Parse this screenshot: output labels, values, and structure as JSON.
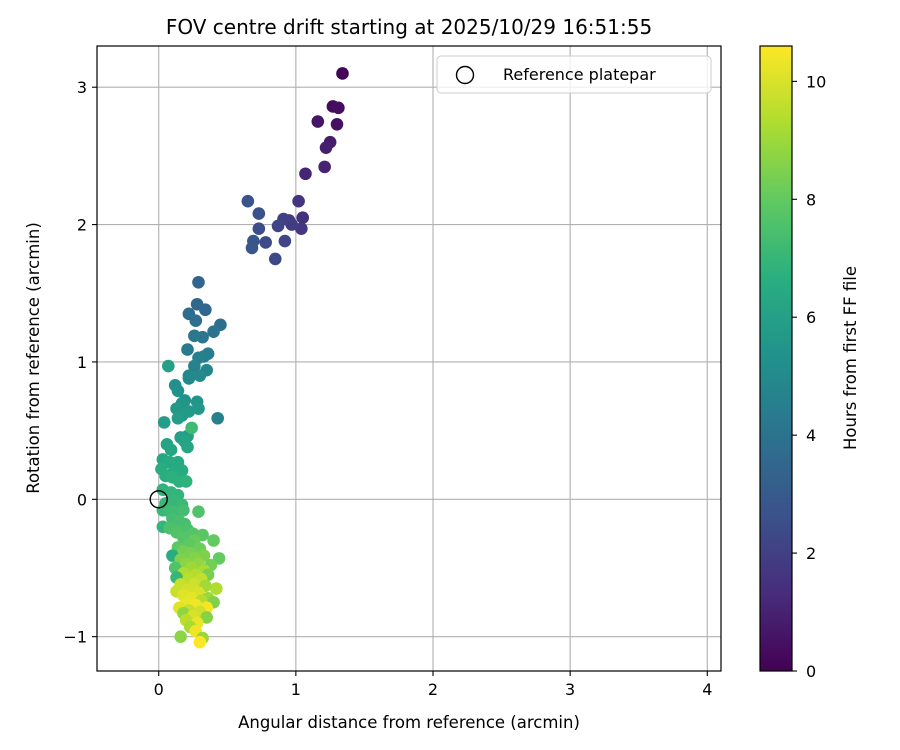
{
  "chart_data": {
    "type": "scatter",
    "title": "FOV centre drift starting at 2025/10/29 16:51:55",
    "xlabel": "Angular distance from reference (arcmin)",
    "ylabel": "Rotation from reference (arcmin)",
    "xlim": [
      -0.45,
      4.1
    ],
    "ylim": [
      -1.25,
      3.3
    ],
    "xticks": [
      0,
      1,
      2,
      3,
      4
    ],
    "yticks": [
      -1,
      0,
      1,
      2,
      3
    ],
    "xtick_labels": [
      "0",
      "1",
      "2",
      "3",
      "4"
    ],
    "ytick_labels": [
      "−1",
      "0",
      "1",
      "2",
      "3"
    ],
    "grid": true,
    "legend": {
      "position": "top-right",
      "label": "Reference platepar"
    },
    "reference_point": {
      "x": 0,
      "y": 0
    },
    "colorbar": {
      "label": "Hours from first FF file",
      "colormap": "viridis",
      "range": [
        0,
        10.6
      ],
      "ticks": [
        0,
        2,
        4,
        6,
        8,
        10
      ],
      "tick_labels": [
        "0",
        "2",
        "4",
        "6",
        "8",
        "10"
      ]
    },
    "series": [
      {
        "name": "FOV centre drift",
        "points": [
          {
            "x": 1.34,
            "y": 3.1,
            "c": 0.1
          },
          {
            "x": 1.27,
            "y": 2.86,
            "c": 0.3
          },
          {
            "x": 1.31,
            "y": 2.85,
            "c": 0.4
          },
          {
            "x": 1.3,
            "y": 2.73,
            "c": 0.5
          },
          {
            "x": 1.16,
            "y": 2.75,
            "c": 0.6
          },
          {
            "x": 1.25,
            "y": 2.6,
            "c": 0.8
          },
          {
            "x": 1.22,
            "y": 2.56,
            "c": 0.9
          },
          {
            "x": 1.21,
            "y": 2.42,
            "c": 1.0
          },
          {
            "x": 1.07,
            "y": 2.37,
            "c": 1.1
          },
          {
            "x": 1.05,
            "y": 2.05,
            "c": 1.5
          },
          {
            "x": 1.02,
            "y": 2.17,
            "c": 1.6
          },
          {
            "x": 1.04,
            "y": 1.97,
            "c": 1.7
          },
          {
            "x": 0.95,
            "y": 2.03,
            "c": 1.8
          },
          {
            "x": 0.97,
            "y": 2.0,
            "c": 1.9
          },
          {
            "x": 0.91,
            "y": 2.04,
            "c": 2.0
          },
          {
            "x": 0.87,
            "y": 1.99,
            "c": 2.1
          },
          {
            "x": 0.92,
            "y": 1.88,
            "c": 2.2
          },
          {
            "x": 0.85,
            "y": 1.75,
            "c": 2.3
          },
          {
            "x": 0.78,
            "y": 1.87,
            "c": 2.4
          },
          {
            "x": 0.73,
            "y": 1.97,
            "c": 2.5
          },
          {
            "x": 0.73,
            "y": 2.08,
            "c": 2.6
          },
          {
            "x": 0.65,
            "y": 2.17,
            "c": 2.7
          },
          {
            "x": 0.69,
            "y": 1.88,
            "c": 2.8
          },
          {
            "x": 0.68,
            "y": 1.83,
            "c": 2.9
          },
          {
            "x": 0.29,
            "y": 1.58,
            "c": 3.4
          },
          {
            "x": 0.28,
            "y": 1.42,
            "c": 3.5
          },
          {
            "x": 0.34,
            "y": 1.38,
            "c": 3.6
          },
          {
            "x": 0.22,
            "y": 1.35,
            "c": 3.7
          },
          {
            "x": 0.27,
            "y": 1.3,
            "c": 3.8
          },
          {
            "x": 0.45,
            "y": 1.27,
            "c": 3.9
          },
          {
            "x": 0.4,
            "y": 1.22,
            "c": 4.0
          },
          {
            "x": 0.32,
            "y": 1.18,
            "c": 4.1
          },
          {
            "x": 0.26,
            "y": 1.19,
            "c": 4.2
          },
          {
            "x": 0.21,
            "y": 1.09,
            "c": 4.3
          },
          {
            "x": 0.36,
            "y": 1.06,
            "c": 4.4
          },
          {
            "x": 0.33,
            "y": 1.04,
            "c": 4.5
          },
          {
            "x": 0.29,
            "y": 1.03,
            "c": 4.6
          },
          {
            "x": 0.26,
            "y": 0.97,
            "c": 4.7
          },
          {
            "x": 0.35,
            "y": 0.94,
            "c": 4.8
          },
          {
            "x": 0.3,
            "y": 0.9,
            "c": 4.9
          },
          {
            "x": 0.22,
            "y": 0.9,
            "c": 5.0
          },
          {
            "x": 0.43,
            "y": 0.59,
            "c": 4.6
          },
          {
            "x": 0.22,
            "y": 0.88,
            "c": 5.0
          },
          {
            "x": 0.12,
            "y": 0.83,
            "c": 5.2
          },
          {
            "x": 0.14,
            "y": 0.79,
            "c": 5.3
          },
          {
            "x": 0.19,
            "y": 0.72,
            "c": 5.4
          },
          {
            "x": 0.17,
            "y": 0.7,
            "c": 5.5
          },
          {
            "x": 0.28,
            "y": 0.71,
            "c": 5.5
          },
          {
            "x": 0.29,
            "y": 0.66,
            "c": 5.6
          },
          {
            "x": 0.13,
            "y": 0.66,
            "c": 5.6
          },
          {
            "x": 0.22,
            "y": 0.64,
            "c": 5.7
          },
          {
            "x": 0.17,
            "y": 0.61,
            "c": 5.7
          },
          {
            "x": 0.14,
            "y": 0.59,
            "c": 5.8
          },
          {
            "x": 0.04,
            "y": 0.56,
            "c": 5.8
          },
          {
            "x": 0.07,
            "y": 0.97,
            "c": 6.0
          },
          {
            "x": 0.21,
            "y": 0.46,
            "c": 5.9
          },
          {
            "x": 0.16,
            "y": 0.45,
            "c": 6.0
          },
          {
            "x": 0.19,
            "y": 0.42,
            "c": 6.1
          },
          {
            "x": 0.06,
            "y": 0.4,
            "c": 6.1
          },
          {
            "x": 0.09,
            "y": 0.36,
            "c": 6.2
          },
          {
            "x": 0.21,
            "y": 0.38,
            "c": 6.2
          },
          {
            "x": 0.24,
            "y": 0.52,
            "c": 7.2
          },
          {
            "x": 0.03,
            "y": 0.29,
            "c": 6.3
          },
          {
            "x": 0.08,
            "y": 0.27,
            "c": 6.4
          },
          {
            "x": 0.14,
            "y": 0.27,
            "c": 6.4
          },
          {
            "x": 0.17,
            "y": 0.21,
            "c": 6.5
          },
          {
            "x": 0.11,
            "y": 0.2,
            "c": 6.5
          },
          {
            "x": 0.02,
            "y": 0.22,
            "c": 6.6
          },
          {
            "x": 0.05,
            "y": 0.17,
            "c": 6.6
          },
          {
            "x": 0.1,
            "y": 0.16,
            "c": 6.7
          },
          {
            "x": 0.15,
            "y": 0.13,
            "c": 6.7
          },
          {
            "x": 0.2,
            "y": 0.13,
            "c": 6.8
          },
          {
            "x": 0.03,
            "y": 0.07,
            "c": 6.8
          },
          {
            "x": 0.09,
            "y": 0.05,
            "c": 6.9
          },
          {
            "x": 0.14,
            "y": 0.03,
            "c": 6.9
          },
          {
            "x": 0.05,
            "y": -0.03,
            "c": 7.0
          },
          {
            "x": 0.12,
            "y": -0.01,
            "c": 7.0
          },
          {
            "x": 0.17,
            "y": -0.04,
            "c": 7.1
          },
          {
            "x": 0.03,
            "y": -0.08,
            "c": 7.1
          },
          {
            "x": 0.08,
            "y": -0.09,
            "c": 7.2
          },
          {
            "x": 0.13,
            "y": -0.1,
            "c": 7.2
          },
          {
            "x": 0.18,
            "y": -0.08,
            "c": 7.3
          },
          {
            "x": 0.29,
            "y": -0.09,
            "c": 7.6
          },
          {
            "x": 0.1,
            "y": -0.14,
            "c": 7.3
          },
          {
            "x": 0.15,
            "y": -0.16,
            "c": 7.4
          },
          {
            "x": 0.19,
            "y": -0.18,
            "c": 7.4
          },
          {
            "x": 0.03,
            "y": -0.2,
            "c": 6.9
          },
          {
            "x": 0.08,
            "y": -0.21,
            "c": 7.5
          },
          {
            "x": 0.21,
            "y": -0.22,
            "c": 7.5
          },
          {
            "x": 0.13,
            "y": -0.24,
            "c": 7.6
          },
          {
            "x": 0.25,
            "y": -0.25,
            "c": 7.7
          },
          {
            "x": 0.32,
            "y": -0.26,
            "c": 7.8
          },
          {
            "x": 0.18,
            "y": -0.28,
            "c": 7.7
          },
          {
            "x": 0.4,
            "y": -0.3,
            "c": 8.0
          },
          {
            "x": 0.26,
            "y": -0.3,
            "c": 8.1
          },
          {
            "x": 0.22,
            "y": -0.33,
            "c": 7.9
          },
          {
            "x": 0.14,
            "y": -0.35,
            "c": 7.9
          },
          {
            "x": 0.3,
            "y": -0.36,
            "c": 8.2
          },
          {
            "x": 0.18,
            "y": -0.38,
            "c": 8.3
          },
          {
            "x": 0.23,
            "y": -0.39,
            "c": 8.4
          },
          {
            "x": 0.1,
            "y": -0.41,
            "c": 6.6
          },
          {
            "x": 0.33,
            "y": -0.41,
            "c": 8.5
          },
          {
            "x": 0.26,
            "y": -0.43,
            "c": 8.6
          },
          {
            "x": 0.44,
            "y": -0.43,
            "c": 8.0
          },
          {
            "x": 0.16,
            "y": -0.44,
            "c": 8.5
          },
          {
            "x": 0.2,
            "y": -0.47,
            "c": 8.7
          },
          {
            "x": 0.29,
            "y": -0.47,
            "c": 8.8
          },
          {
            "x": 0.38,
            "y": -0.48,
            "c": 8.3
          },
          {
            "x": 0.12,
            "y": -0.5,
            "c": 7.6
          },
          {
            "x": 0.24,
            "y": -0.5,
            "c": 9.0
          },
          {
            "x": 0.33,
            "y": -0.52,
            "c": 9.2
          },
          {
            "x": 0.18,
            "y": -0.54,
            "c": 9.3
          },
          {
            "x": 0.27,
            "y": -0.55,
            "c": 9.4
          },
          {
            "x": 0.36,
            "y": -0.55,
            "c": 8.4
          },
          {
            "x": 0.13,
            "y": -0.57,
            "c": 7.0
          },
          {
            "x": 0.22,
            "y": -0.58,
            "c": 9.5
          },
          {
            "x": 0.31,
            "y": -0.58,
            "c": 9.6
          },
          {
            "x": 0.16,
            "y": -0.62,
            "c": 9.7
          },
          {
            "x": 0.26,
            "y": -0.62,
            "c": 9.8
          },
          {
            "x": 0.34,
            "y": -0.63,
            "c": 9.1
          },
          {
            "x": 0.42,
            "y": -0.65,
            "c": 9.3
          },
          {
            "x": 0.21,
            "y": -0.66,
            "c": 9.9
          },
          {
            "x": 0.13,
            "y": -0.67,
            "c": 9.7
          },
          {
            "x": 0.29,
            "y": -0.68,
            "c": 10.0
          },
          {
            "x": 0.18,
            "y": -0.7,
            "c": 10.1
          },
          {
            "x": 0.24,
            "y": -0.72,
            "c": 10.2
          },
          {
            "x": 0.36,
            "y": -0.72,
            "c": 9.0
          },
          {
            "x": 0.31,
            "y": -0.74,
            "c": 9.4
          },
          {
            "x": 0.4,
            "y": -0.75,
            "c": 8.5
          },
          {
            "x": 0.2,
            "y": -0.76,
            "c": 10.3
          },
          {
            "x": 0.27,
            "y": -0.77,
            "c": 10.4
          },
          {
            "x": 0.15,
            "y": -0.79,
            "c": 10.1
          },
          {
            "x": 0.35,
            "y": -0.79,
            "c": 10.5
          },
          {
            "x": 0.22,
            "y": -0.81,
            "c": 9.6
          },
          {
            "x": 0.3,
            "y": -0.82,
            "c": 9.8
          },
          {
            "x": 0.18,
            "y": -0.83,
            "c": 8.8
          },
          {
            "x": 0.25,
            "y": -0.85,
            "c": 10.0
          },
          {
            "x": 0.35,
            "y": -0.86,
            "c": 8.6
          },
          {
            "x": 0.2,
            "y": -0.88,
            "c": 9.5
          },
          {
            "x": 0.28,
            "y": -0.9,
            "c": 10.3
          },
          {
            "x": 0.23,
            "y": -0.93,
            "c": 9.2
          },
          {
            "x": 0.27,
            "y": -0.96,
            "c": 10.4
          },
          {
            "x": 0.16,
            "y": -1.0,
            "c": 8.7
          },
          {
            "x": 0.32,
            "y": -1.01,
            "c": 8.9
          },
          {
            "x": 0.3,
            "y": -1.04,
            "c": 10.6
          }
        ]
      }
    ]
  }
}
